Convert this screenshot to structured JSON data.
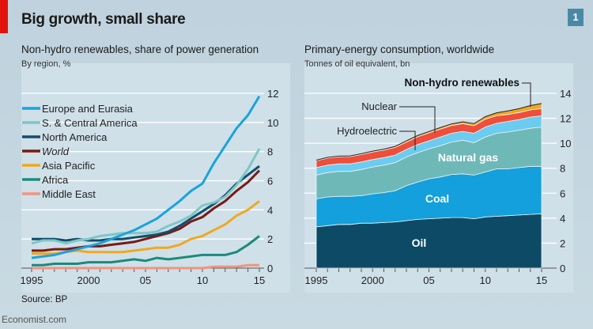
{
  "header": {
    "title": "Big growth, small share",
    "chart_number": "1"
  },
  "footer": {
    "source": "Source: BP",
    "brand": "Economist.com"
  },
  "colors": {
    "accent": "#e3120b",
    "badge": "#4a89a6"
  },
  "chart_data": [
    {
      "type": "line",
      "title": "Non-hydro renewables, share of power generation",
      "subtitle": "By region, %",
      "x": [
        1995,
        1996,
        1997,
        1998,
        1999,
        2000,
        2001,
        2002,
        2003,
        2004,
        2005,
        2006,
        2007,
        2008,
        2009,
        2010,
        2011,
        2012,
        2013,
        2014,
        2015
      ],
      "xticks": [
        {
          "v": 1995,
          "label": "1995"
        },
        {
          "v": 2000,
          "label": "2000"
        },
        {
          "v": 2005,
          "label": "05"
        },
        {
          "v": 2010,
          "label": "10"
        },
        {
          "v": 2015,
          "label": "15"
        }
      ],
      "ylim": [
        0,
        12
      ],
      "yticks": [
        "0",
        "2",
        "4",
        "6",
        "8",
        "10",
        "12"
      ],
      "grid": true,
      "legend": "top-left",
      "series": [
        {
          "name": "Europe and Eurasia",
          "color": "#1aa3dc",
          "values": [
            0.7,
            0.8,
            0.9,
            1.1,
            1.3,
            1.5,
            1.7,
            2.0,
            2.3,
            2.6,
            3.0,
            3.4,
            4.0,
            4.6,
            5.3,
            5.8,
            7.2,
            8.4,
            9.6,
            10.5,
            11.8
          ]
        },
        {
          "name": "S. & Central America",
          "color": "#7ec6c6",
          "values": [
            1.7,
            1.9,
            1.9,
            1.7,
            1.9,
            2.0,
            2.2,
            2.3,
            2.4,
            2.4,
            2.4,
            2.5,
            2.9,
            3.2,
            3.6,
            4.3,
            4.5,
            4.9,
            5.7,
            6.8,
            8.2
          ]
        },
        {
          "name": "North America",
          "color": "#134d6b",
          "values": [
            2.0,
            2.0,
            2.0,
            1.9,
            2.0,
            1.9,
            1.9,
            2.0,
            2.0,
            2.1,
            2.2,
            2.3,
            2.5,
            2.9,
            3.4,
            3.9,
            4.4,
            5.0,
            5.8,
            6.4,
            7.0
          ]
        },
        {
          "name": "World",
          "italic": true,
          "color": "#7a1a14",
          "values": [
            1.2,
            1.2,
            1.3,
            1.3,
            1.4,
            1.5,
            1.5,
            1.6,
            1.7,
            1.8,
            2.0,
            2.2,
            2.4,
            2.7,
            3.2,
            3.5,
            4.1,
            4.6,
            5.3,
            5.9,
            6.7
          ]
        },
        {
          "name": "Asia Pacific",
          "color": "#f0a81e",
          "values": [
            1.0,
            1.0,
            1.0,
            1.1,
            1.2,
            1.1,
            1.1,
            1.1,
            1.1,
            1.2,
            1.3,
            1.4,
            1.4,
            1.6,
            2.0,
            2.2,
            2.6,
            3.0,
            3.6,
            4.0,
            4.6
          ]
        },
        {
          "name": "Africa",
          "color": "#1b8a7a",
          "values": [
            0.2,
            0.2,
            0.3,
            0.3,
            0.3,
            0.4,
            0.4,
            0.4,
            0.5,
            0.6,
            0.5,
            0.7,
            0.6,
            0.7,
            0.8,
            0.9,
            0.9,
            0.9,
            1.1,
            1.6,
            2.2
          ]
        },
        {
          "name": "Middle East",
          "color": "#f2937e",
          "values": [
            0,
            0,
            0,
            0,
            0,
            0,
            0,
            0,
            0,
            0,
            0,
            0,
            0,
            0,
            0,
            0,
            0.1,
            0.1,
            0.1,
            0.2,
            0.2
          ]
        }
      ]
    },
    {
      "type": "area",
      "stacked": true,
      "title": "Primary-energy consumption, worldwide",
      "subtitle": "Tonnes of oil equivalent, bn",
      "x": [
        1995,
        1996,
        1997,
        1998,
        1999,
        2000,
        2001,
        2002,
        2003,
        2004,
        2005,
        2006,
        2007,
        2008,
        2009,
        2010,
        2011,
        2012,
        2013,
        2014,
        2015
      ],
      "xticks": [
        {
          "v": 1995,
          "label": "1995"
        },
        {
          "v": 2000,
          "label": "2000"
        },
        {
          "v": 2005,
          "label": "05"
        },
        {
          "v": 2010,
          "label": "10"
        },
        {
          "v": 2015,
          "label": "15"
        }
      ],
      "ylim": [
        0,
        14
      ],
      "yticks": [
        "0",
        "2",
        "4",
        "6",
        "8",
        "10",
        "12",
        "14"
      ],
      "grid": true,
      "series": [
        {
          "name": "Oil",
          "color": "#0d4a66",
          "values": [
            3.3,
            3.4,
            3.5,
            3.5,
            3.6,
            3.6,
            3.65,
            3.7,
            3.8,
            3.9,
            3.95,
            4.0,
            4.05,
            4.05,
            3.95,
            4.1,
            4.15,
            4.2,
            4.25,
            4.3,
            4.35
          ]
        },
        {
          "name": "Coal",
          "color": "#13a0dc",
          "values": [
            2.25,
            2.3,
            2.25,
            2.25,
            2.2,
            2.35,
            2.4,
            2.5,
            2.8,
            3.0,
            3.2,
            3.3,
            3.45,
            3.5,
            3.5,
            3.6,
            3.8,
            3.75,
            3.8,
            3.85,
            3.8
          ]
        },
        {
          "name": "Natural gas",
          "color": "#6fb8b8",
          "values": [
            1.9,
            1.95,
            2.0,
            2.0,
            2.1,
            2.15,
            2.2,
            2.25,
            2.3,
            2.35,
            2.4,
            2.5,
            2.6,
            2.7,
            2.6,
            2.8,
            2.85,
            2.95,
            3.0,
            3.05,
            3.15
          ]
        },
        {
          "name": "Hydroelectric",
          "color": "#6ccbf0",
          "values": [
            0.6,
            0.6,
            0.6,
            0.6,
            0.6,
            0.6,
            0.6,
            0.6,
            0.6,
            0.65,
            0.65,
            0.7,
            0.7,
            0.7,
            0.75,
            0.8,
            0.8,
            0.85,
            0.85,
            0.9,
            0.9
          ]
        },
        {
          "name": "Nuclear",
          "color": "#ef4e3a",
          "values": [
            0.55,
            0.57,
            0.57,
            0.58,
            0.6,
            0.6,
            0.61,
            0.62,
            0.6,
            0.62,
            0.63,
            0.63,
            0.62,
            0.62,
            0.6,
            0.63,
            0.6,
            0.56,
            0.56,
            0.57,
            0.58
          ]
        },
        {
          "name": "Non-hydro renewables",
          "color": "#f0a81e",
          "values": [
            0.05,
            0.05,
            0.05,
            0.06,
            0.06,
            0.07,
            0.07,
            0.08,
            0.09,
            0.1,
            0.11,
            0.12,
            0.13,
            0.15,
            0.17,
            0.2,
            0.24,
            0.28,
            0.31,
            0.35,
            0.4
          ]
        }
      ]
    }
  ]
}
